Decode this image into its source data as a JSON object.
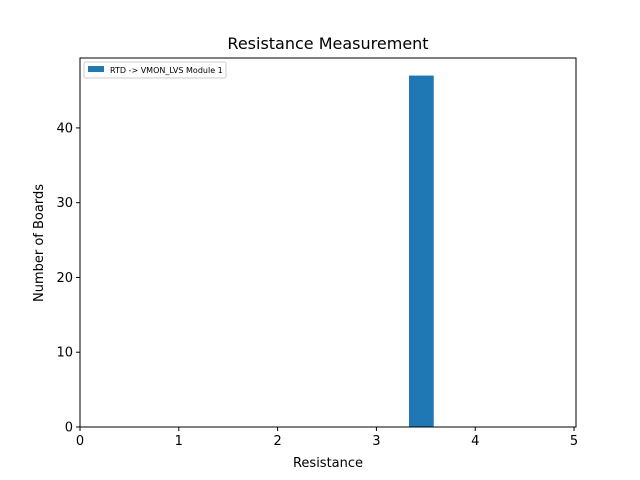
{
  "chart_data": {
    "type": "bar",
    "title": "Resistance Measurement",
    "xlabel": "Resistance",
    "ylabel": "Number of Boards",
    "xlim": [
      0,
      5.02
    ],
    "ylim": [
      0,
      49.35
    ],
    "xticks": [
      0,
      1,
      2,
      3,
      4,
      5
    ],
    "yticks": [
      0,
      10,
      20,
      30,
      40
    ],
    "bins": [
      {
        "start": 3.33,
        "end": 3.58,
        "count": 47
      }
    ],
    "series": [
      {
        "name": "RTD -> VMON_LVS Module 1",
        "color": "#1f77b4"
      }
    ],
    "grid": false,
    "legend_position": "top-left"
  }
}
